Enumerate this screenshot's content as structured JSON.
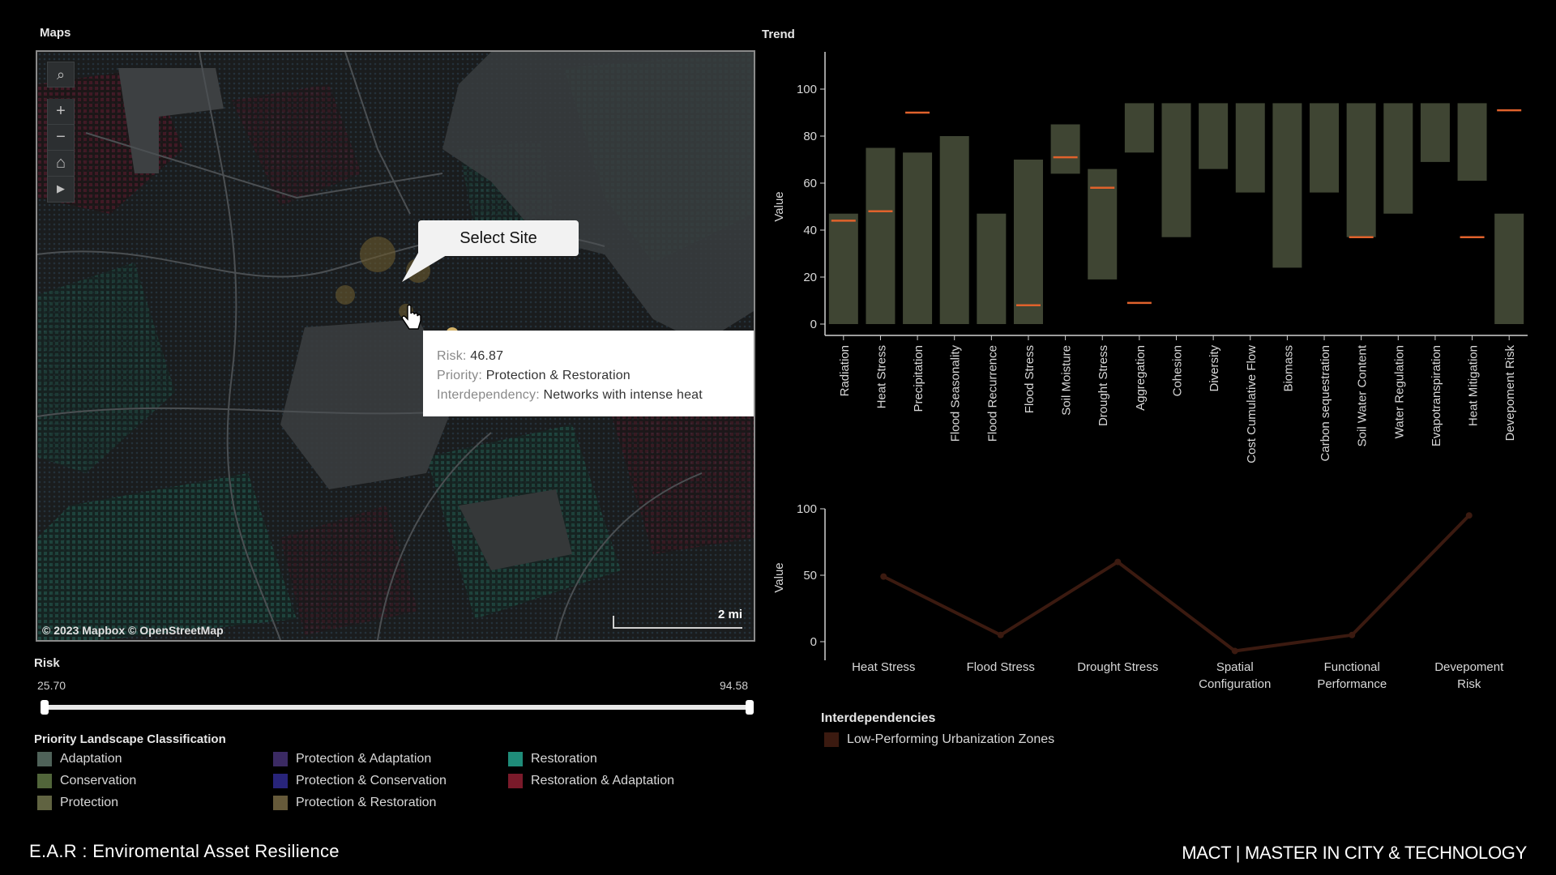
{
  "sections": {
    "maps": "Maps",
    "trend": "Trend"
  },
  "map": {
    "attribution": "© 2023 Mapbox © OpenStreetMap",
    "scale_label": "2 mi",
    "select_site_label": "Select Site",
    "controls": {
      "search": "⌕",
      "zoom_in": "+",
      "zoom_out": "−",
      "home": "⌂",
      "play": "▶"
    },
    "tooltip": {
      "risk_label": "Risk:",
      "risk_value": "46.87",
      "priority_label": "Priority:",
      "priority_value": "Protection & Restoration",
      "interdependency_label": "Interdependency:",
      "interdependency_value": "Networks with intense heat"
    }
  },
  "risk": {
    "title": "Risk",
    "min": "25.70",
    "max": "94.58"
  },
  "legend": {
    "title": "Priority Landscape Classification",
    "items": [
      {
        "label": "Adaptation",
        "color": "#4f6259"
      },
      {
        "label": "Conservation",
        "color": "#51653a"
      },
      {
        "label": "Protection",
        "color": "#606341"
      },
      {
        "label": "Protection & Adaptation",
        "color": "#3b2a63"
      },
      {
        "label": "Protection & Conservation",
        "color": "#28247a"
      },
      {
        "label": "Protection & Restoration",
        "color": "#665a3a"
      },
      {
        "label": "Restoration",
        "color": "#1f8c79"
      },
      {
        "label": "Restoration & Adaptation",
        "color": "#7a1a2a"
      }
    ]
  },
  "footer": {
    "left": "E.A.R : Enviromental Asset Resilience",
    "right": "MACT | MASTER IN CITY & TECHNOLOGY"
  },
  "chart_data": [
    {
      "type": "bar",
      "title": "Trend",
      "ylabel": "Value",
      "ylim": [
        0,
        100
      ],
      "yticks": [
        "0",
        "20",
        "40",
        "60",
        "80",
        "100"
      ],
      "bar_color": "#3f4533",
      "marker_color": "#e0622c",
      "categories": [
        "Radiation",
        "Heat Stress",
        "Precipitation",
        "Flood Seasonality",
        "Flood Recurrence",
        "Flood Stress",
        "Soil Moisture",
        "Drought Stress",
        "Aggregation",
        "Cohesion",
        "Diversity",
        "Cost Cumulative Flow",
        "Biomass",
        "Carbon sequestration",
        "Soil Water Content",
        "Water Regulation",
        "Evapotranspiration",
        "Heat Mitigation",
        "Devepoment Risk"
      ],
      "bar_low": [
        0,
        0,
        0,
        0,
        0,
        0,
        64,
        19,
        73,
        37,
        66,
        56,
        24,
        56,
        37,
        47,
        69,
        61,
        0
      ],
      "bar_high": [
        47,
        75,
        73,
        80,
        47,
        70,
        85,
        66,
        94,
        94,
        94,
        94,
        94,
        94,
        94,
        94,
        94,
        94,
        47
      ],
      "markers": [
        44,
        48,
        90,
        null,
        null,
        8,
        71,
        58,
        9,
        null,
        null,
        null,
        null,
        null,
        37,
        null,
        null,
        37,
        91
      ]
    },
    {
      "type": "line",
      "ylabel": "Value",
      "ylim": [
        0,
        100
      ],
      "yticks": [
        "0",
        "50",
        "100"
      ],
      "line_color": "#3b1a10",
      "categories": [
        "Heat Stress",
        "Flood Stress",
        "Drought Stress",
        "Spatial Configuration",
        "Functional Performance",
        "Devepoment Risk"
      ],
      "values": [
        49,
        5,
        60,
        -7,
        5,
        95
      ]
    }
  ],
  "interdependencies": {
    "title": "Interdependencies",
    "items": [
      {
        "label": "Low-Performing Urbanization Zones",
        "color": "#3b1a10"
      }
    ]
  }
}
